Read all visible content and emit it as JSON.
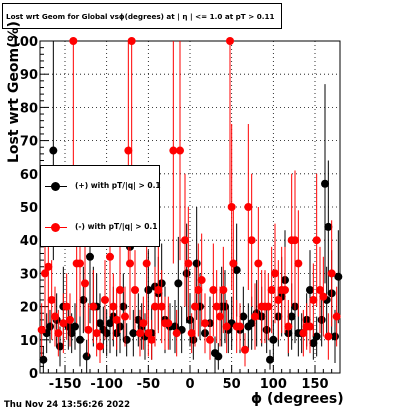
{
  "chart_data": {
    "type": "scatter",
    "title": "Lost wrt Geom for Global vsϕ(degrees) at | η | <= 1.0 at pT > 0.11",
    "xlabel": "ϕ (degrees)",
    "ylabel": "Lost wrt Geom(%)",
    "xlim": [
      -180,
      180
    ],
    "ylim": [
      0,
      100
    ],
    "x_ticks": [
      "-150",
      "-100",
      "-50",
      "0",
      "50",
      "100",
      "150"
    ],
    "y_ticks": [
      "0",
      "10",
      "20",
      "30",
      "40",
      "50",
      "60",
      "70",
      "80",
      "90",
      "100"
    ],
    "grid": true,
    "legend_placement": "left-middle",
    "footer": "Thu Nov 24 13:56:26 2022",
    "series": [
      {
        "name": "(+) with pT/|q| > 0.1",
        "color": "#000000",
        "points": [
          [
            -176,
            4,
            4
          ],
          [
            -172,
            12,
            6
          ],
          [
            -168,
            14,
            5
          ],
          [
            -164,
            67,
            33
          ],
          [
            -160,
            16,
            8
          ],
          [
            -156,
            8,
            6
          ],
          [
            -152,
            20,
            12
          ],
          [
            -146,
            14,
            7
          ],
          [
            -142,
            12,
            6
          ],
          [
            -138,
            14,
            7
          ],
          [
            -132,
            10,
            8
          ],
          [
            -128,
            22,
            10
          ],
          [
            -124,
            5,
            5
          ],
          [
            -120,
            35,
            20
          ],
          [
            -116,
            20,
            12
          ],
          [
            -112,
            20,
            10
          ],
          [
            -108,
            15,
            9
          ],
          [
            -104,
            13,
            7
          ],
          [
            -100,
            12,
            7
          ],
          [
            -96,
            15,
            9
          ],
          [
            -92,
            17,
            9
          ],
          [
            -88,
            12,
            7
          ],
          [
            -84,
            14,
            8
          ],
          [
            -80,
            20,
            10
          ],
          [
            -76,
            10,
            5
          ],
          [
            -72,
            38,
            20
          ],
          [
            -68,
            12,
            7
          ],
          [
            -62,
            16,
            8
          ],
          [
            -58,
            14,
            7
          ],
          [
            -54,
            11,
            7
          ],
          [
            -50,
            25,
            12
          ],
          [
            -46,
            12,
            8
          ],
          [
            -42,
            26,
            12
          ],
          [
            -38,
            24,
            11
          ],
          [
            -34,
            27,
            12
          ],
          [
            -30,
            16,
            10
          ],
          [
            -24,
            14,
            7
          ],
          [
            -18,
            14,
            8
          ],
          [
            -14,
            27,
            14
          ],
          [
            -10,
            13,
            7
          ],
          [
            -4,
            30,
            15
          ],
          [
            0,
            16,
            8
          ],
          [
            4,
            10,
            6
          ],
          [
            8,
            33,
            17
          ],
          [
            12,
            20,
            10
          ],
          [
            18,
            12,
            6
          ],
          [
            24,
            15,
            8
          ],
          [
            30,
            6,
            5
          ],
          [
            34,
            5,
            4
          ],
          [
            38,
            20,
            12
          ],
          [
            42,
            20,
            11
          ],
          [
            46,
            13,
            7
          ],
          [
            50,
            15,
            8
          ],
          [
            56,
            31,
            14
          ],
          [
            60,
            13,
            7
          ],
          [
            64,
            17,
            9
          ],
          [
            70,
            14,
            7
          ],
          [
            74,
            15,
            8
          ],
          [
            80,
            18,
            10
          ],
          [
            86,
            17,
            9
          ],
          [
            92,
            13,
            7
          ],
          [
            96,
            4,
            3
          ],
          [
            100,
            10,
            6
          ],
          [
            106,
            17,
            9
          ],
          [
            110,
            23,
            12
          ],
          [
            114,
            28,
            15
          ],
          [
            118,
            12,
            7
          ],
          [
            122,
            17,
            10
          ],
          [
            126,
            20,
            11
          ],
          [
            130,
            12,
            7
          ],
          [
            134,
            12,
            6
          ],
          [
            140,
            16,
            8
          ],
          [
            144,
            25,
            12
          ],
          [
            148,
            9,
            5
          ],
          [
            152,
            11,
            6
          ],
          [
            158,
            16,
            8
          ],
          [
            162,
            57,
            30
          ],
          [
            164,
            22,
            10
          ],
          [
            166,
            44,
            20
          ],
          [
            170,
            24,
            13
          ],
          [
            174,
            11,
            8
          ],
          [
            178,
            29,
            14
          ]
        ]
      },
      {
        "name": "(-) with pT/|q| > 0.1",
        "color": "#ff0000",
        "points": [
          [
            -178,
            13,
            8
          ],
          [
            -174,
            30,
            18
          ],
          [
            -170,
            32,
            17
          ],
          [
            -166,
            22,
            12
          ],
          [
            -162,
            17,
            9
          ],
          [
            -158,
            12,
            7
          ],
          [
            -152,
            15,
            9
          ],
          [
            -148,
            20,
            10
          ],
          [
            -144,
            16,
            8
          ],
          [
            -140,
            100,
            50
          ],
          [
            -136,
            33,
            18
          ],
          [
            -132,
            33,
            16
          ],
          [
            -126,
            27,
            14
          ],
          [
            -122,
            13,
            8
          ],
          [
            -116,
            20,
            11
          ],
          [
            -112,
            12,
            7
          ],
          [
            -108,
            8,
            5
          ],
          [
            -102,
            22,
            12
          ],
          [
            -96,
            35,
            18
          ],
          [
            -92,
            20,
            10
          ],
          [
            -88,
            16,
            9
          ],
          [
            -84,
            25,
            13
          ],
          [
            -78,
            17,
            9
          ],
          [
            -74,
            67,
            33
          ],
          [
            -72,
            33,
            17
          ],
          [
            -70,
            100,
            50
          ],
          [
            -66,
            25,
            12
          ],
          [
            -60,
            12,
            7
          ],
          [
            -56,
            15,
            8
          ],
          [
            -52,
            33,
            18
          ],
          [
            -50,
            12,
            7
          ],
          [
            -46,
            10,
            6
          ],
          [
            -42,
            20,
            12
          ],
          [
            -38,
            25,
            13
          ],
          [
            -34,
            20,
            11
          ],
          [
            -30,
            15,
            8
          ],
          [
            -26,
            15,
            8
          ],
          [
            -20,
            67,
            34
          ],
          [
            -16,
            12,
            7
          ],
          [
            -12,
            67,
            33
          ],
          [
            -6,
            40,
            20
          ],
          [
            -2,
            33,
            17
          ],
          [
            2,
            12,
            6
          ],
          [
            6,
            20,
            12
          ],
          [
            10,
            25,
            14
          ],
          [
            14,
            28,
            14
          ],
          [
            18,
            15,
            9
          ],
          [
            24,
            10,
            6
          ],
          [
            28,
            25,
            14
          ],
          [
            32,
            20,
            11
          ],
          [
            36,
            17,
            9
          ],
          [
            40,
            25,
            13
          ],
          [
            44,
            14,
            8
          ],
          [
            48,
            100,
            50
          ],
          [
            50,
            50,
            25
          ],
          [
            52,
            33,
            17
          ],
          [
            56,
            14,
            8
          ],
          [
            60,
            14,
            7
          ],
          [
            66,
            7,
            5
          ],
          [
            70,
            50,
            25
          ],
          [
            74,
            40,
            20
          ],
          [
            78,
            17,
            10
          ],
          [
            82,
            33,
            17
          ],
          [
            86,
            20,
            11
          ],
          [
            90,
            20,
            11
          ],
          [
            94,
            20,
            10
          ],
          [
            98,
            25,
            13
          ],
          [
            102,
            30,
            15
          ],
          [
            106,
            22,
            12
          ],
          [
            110,
            25,
            13
          ],
          [
            114,
            25,
            13
          ],
          [
            118,
            14,
            8
          ],
          [
            122,
            40,
            20
          ],
          [
            126,
            40,
            21
          ],
          [
            130,
            33,
            16
          ],
          [
            136,
            12,
            7
          ],
          [
            140,
            14,
            7
          ],
          [
            144,
            14,
            8
          ],
          [
            148,
            22,
            11
          ],
          [
            152,
            40,
            20
          ],
          [
            156,
            25,
            13
          ],
          [
            160,
            23,
            12
          ],
          [
            166,
            11,
            7
          ],
          [
            170,
            30,
            16
          ],
          [
            176,
            17,
            9
          ]
        ]
      }
    ]
  }
}
